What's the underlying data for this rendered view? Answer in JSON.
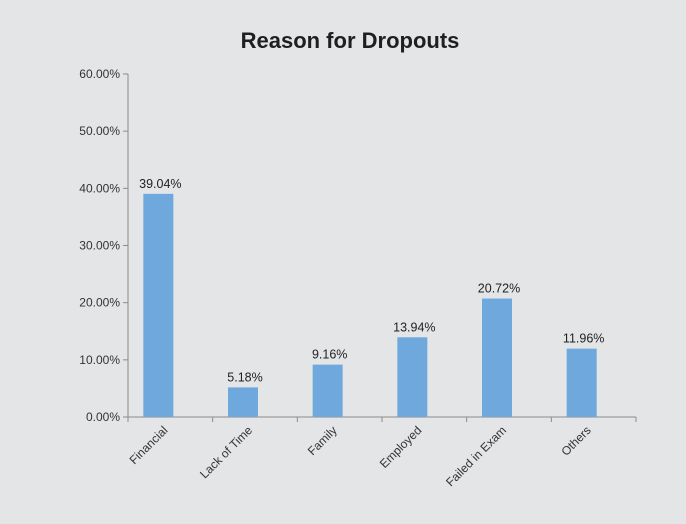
{
  "chart_data": {
    "type": "bar",
    "title": "Reason for Dropouts",
    "xlabel": "",
    "ylabel": "",
    "categories": [
      "Financial",
      "Lack of Time",
      "Family",
      "Employed",
      "Failed in Exam",
      "Others"
    ],
    "values": [
      39.04,
      5.18,
      9.16,
      13.94,
      20.72,
      11.96
    ],
    "value_labels": [
      "39.04%",
      "5.18%",
      "9.16%",
      "13.94%",
      "20.72%",
      "11.96%"
    ],
    "y_ticks": [
      0,
      10,
      20,
      30,
      40,
      50,
      60
    ],
    "y_tick_labels": [
      "0.00%",
      "10.00%",
      "20.00%",
      "30.00%",
      "40.00%",
      "50.00%",
      "60.00%"
    ],
    "ylim": [
      0,
      60
    ],
    "grid": false,
    "legend": "none",
    "bar_color": "#6fa8dc",
    "background_color": "#e3e5e6"
  }
}
